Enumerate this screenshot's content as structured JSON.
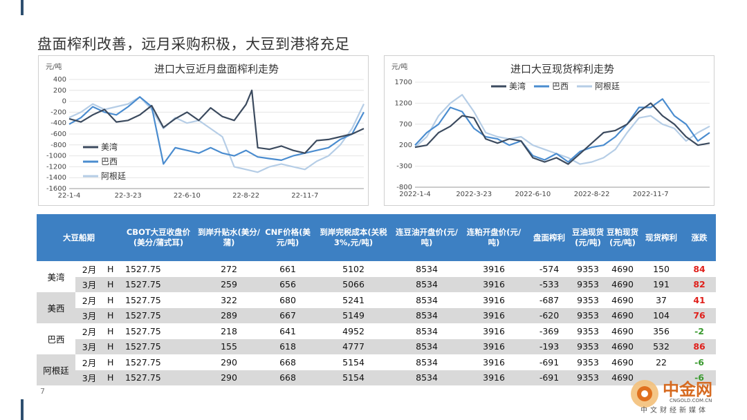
{
  "slide": {
    "title": "盘面榨利改善，远月采购积极，大豆到港将充足",
    "page_number": "7"
  },
  "colors": {
    "accent": "#2e4f6f",
    "header_bg": "#3d80c3",
    "row_shade": "#d9d9d9",
    "up": "#e0201b",
    "down": "#3a9a2f",
    "series_us": "#3b4a5e",
    "series_brazil": "#4a8ccf",
    "series_argentina": "#b5cde6"
  },
  "chart_data": [
    {
      "type": "line",
      "title": "进口大豆近月盘面榨利走势",
      "ylabel": "元/吨",
      "ylim": [
        -1600,
        400
      ],
      "yticks": [
        400,
        200,
        0,
        -200,
        -400,
        -600,
        -800,
        -1000,
        -1200,
        -1400,
        -1600
      ],
      "xticks": [
        "22-1-4",
        "22-3-23",
        "22-6-10",
        "22-8-22",
        "22-11-7"
      ],
      "x_range_index": [
        0,
        100
      ],
      "xtick_index": [
        0,
        20,
        40,
        60,
        80
      ],
      "legend_position": "bottom-left",
      "grid": true,
      "series": [
        {
          "name": "美湾",
          "x": [
            0,
            4,
            8,
            12,
            16,
            20,
            24,
            28,
            32,
            36,
            40,
            44,
            48,
            52,
            56,
            60,
            62,
            64,
            68,
            72,
            76,
            80,
            84,
            88,
            92,
            96,
            100
          ],
          "y": [
            -320,
            -380,
            -250,
            -150,
            -380,
            -350,
            -250,
            -80,
            -480,
            -320,
            -200,
            -350,
            -120,
            -280,
            -350,
            -60,
            200,
            -850,
            -880,
            -820,
            -900,
            -950,
            -720,
            -700,
            -650,
            -600,
            -500
          ]
        },
        {
          "name": "巴西",
          "x": [
            0,
            4,
            8,
            12,
            16,
            20,
            24,
            28,
            32,
            36,
            40,
            44,
            48,
            52,
            56,
            60,
            64,
            68,
            72,
            76,
            80,
            84,
            88,
            92,
            96,
            100
          ],
          "y": [
            -420,
            -300,
            -100,
            -200,
            -250,
            -100,
            80,
            -100,
            -1150,
            -850,
            -900,
            -950,
            -850,
            -950,
            -1000,
            -900,
            -1020,
            -1050,
            -1080,
            -1000,
            -950,
            -900,
            -850,
            -700,
            -600,
            -200
          ]
        },
        {
          "name": "阿根廷",
          "x": [
            0,
            4,
            8,
            12,
            16,
            20,
            24,
            28,
            32,
            36,
            40,
            44,
            48,
            52,
            56,
            60,
            64,
            68,
            72,
            76,
            80,
            84,
            88,
            92,
            96,
            100
          ],
          "y": [
            -300,
            -200,
            -50,
            -150,
            -100,
            -50,
            80,
            -150,
            -500,
            -300,
            -400,
            -350,
            -500,
            -650,
            -1200,
            -1250,
            -1300,
            -1200,
            -1150,
            -1200,
            -1250,
            -1100,
            -1000,
            -800,
            -500,
            -50
          ]
        }
      ]
    },
    {
      "type": "line",
      "title": "进口大豆现货榨利走势",
      "ylabel": "元/吨",
      "ylim": [
        -800,
        1700
      ],
      "yticks": [
        1700,
        1200,
        700,
        200,
        -300,
        -800
      ],
      "xticks": [
        "2022-1-4",
        "2022-3-23",
        "2022-6-10",
        "2022-8-22",
        "2022-11-7"
      ],
      "x_range_index": [
        0,
        100
      ],
      "xtick_index": [
        0,
        20,
        40,
        60,
        80
      ],
      "legend_position": "top-center",
      "grid": true,
      "series": [
        {
          "name": "美湾",
          "x": [
            0,
            4,
            8,
            12,
            16,
            20,
            24,
            28,
            32,
            36,
            40,
            44,
            48,
            52,
            56,
            60,
            64,
            68,
            72,
            76,
            80,
            84,
            88,
            92,
            96,
            100
          ],
          "y": [
            150,
            200,
            500,
            650,
            900,
            850,
            350,
            250,
            350,
            300,
            -100,
            -200,
            -100,
            -250,
            0,
            250,
            500,
            550,
            700,
            1000,
            1200,
            900,
            700,
            400,
            200,
            250
          ]
        },
        {
          "name": "巴西",
          "x": [
            0,
            4,
            8,
            12,
            16,
            20,
            24,
            28,
            32,
            36,
            40,
            44,
            48,
            52,
            56,
            60,
            64,
            68,
            72,
            76,
            80,
            84,
            88,
            92,
            96,
            100
          ],
          "y": [
            200,
            500,
            700,
            1100,
            1000,
            600,
            400,
            350,
            200,
            300,
            -50,
            -150,
            0,
            -200,
            50,
            150,
            200,
            400,
            700,
            1100,
            1100,
            1300,
            900,
            700,
            300,
            500
          ]
        },
        {
          "name": "阿根廷",
          "x": [
            0,
            4,
            8,
            12,
            16,
            20,
            24,
            28,
            32,
            36,
            40,
            44,
            48,
            52,
            56,
            60,
            64,
            68,
            72,
            76,
            80,
            84,
            88,
            92,
            96,
            100
          ],
          "y": [
            150,
            400,
            900,
            1200,
            1400,
            1000,
            500,
            400,
            350,
            400,
            200,
            100,
            0,
            -100,
            -250,
            -200,
            -100,
            100,
            500,
            850,
            900,
            700,
            600,
            300,
            500,
            650
          ]
        }
      ]
    }
  ],
  "table": {
    "headers": [
      "大豆船期",
      "",
      "",
      "CBOT大豆收盘价(美分/蒲式耳)",
      "到岸升贴水(美分/蒲)",
      "CNF价格(美元/吨)",
      "到岸完税成本(关税3%,元/吨)",
      "连豆油开盘价(元/吨)",
      "连粕开盘价(元/吨)",
      "盘面榨利",
      "豆油现货(元/吨)",
      "豆粕现货(元/吨)",
      "现货榨利",
      "涨跌"
    ],
    "groups": [
      {
        "port": "美湾",
        "rows": [
          {
            "month": "2月",
            "h": "H",
            "cbot": "1527.75",
            "premium": "272",
            "cnf": "661",
            "cost": "5102",
            "oil_open": "8534",
            "meal_open": "3916",
            "board_margin": "-574",
            "oil_spot": "9353",
            "meal_spot": "4690",
            "spot_margin": "150",
            "change": "84",
            "dir": "up"
          },
          {
            "month": "3月",
            "h": "H",
            "cbot": "1527.75",
            "premium": "259",
            "cnf": "656",
            "cost": "5066",
            "oil_open": "8534",
            "meal_open": "3916",
            "board_margin": "-533",
            "oil_spot": "9353",
            "meal_spot": "4690",
            "spot_margin": "191",
            "change": "82",
            "dir": "up"
          }
        ]
      },
      {
        "port": "美西",
        "rows": [
          {
            "month": "2月",
            "h": "H",
            "cbot": "1527.75",
            "premium": "322",
            "cnf": "680",
            "cost": "5241",
            "oil_open": "8534",
            "meal_open": "3916",
            "board_margin": "-687",
            "oil_spot": "9353",
            "meal_spot": "4690",
            "spot_margin": "37",
            "change": "41",
            "dir": "up"
          },
          {
            "month": "3月",
            "h": "H",
            "cbot": "1527.75",
            "premium": "289",
            "cnf": "667",
            "cost": "5149",
            "oil_open": "8534",
            "meal_open": "3916",
            "board_margin": "-620",
            "oil_spot": "9353",
            "meal_spot": "4690",
            "spot_margin": "104",
            "change": "76",
            "dir": "up"
          }
        ]
      },
      {
        "port": "巴西",
        "rows": [
          {
            "month": "2月",
            "h": "H",
            "cbot": "1527.75",
            "premium": "218",
            "cnf": "641",
            "cost": "4952",
            "oil_open": "8534",
            "meal_open": "3916",
            "board_margin": "-369",
            "oil_spot": "9353",
            "meal_spot": "4690",
            "spot_margin": "356",
            "change": "-2",
            "dir": "down"
          },
          {
            "month": "3月",
            "h": "H",
            "cbot": "1527.75",
            "premium": "155",
            "cnf": "618",
            "cost": "4777",
            "oil_open": "8534",
            "meal_open": "3916",
            "board_margin": "-193",
            "oil_spot": "9353",
            "meal_spot": "4690",
            "spot_margin": "532",
            "change": "86",
            "dir": "up"
          }
        ]
      },
      {
        "port": "阿根廷",
        "rows": [
          {
            "month": "2月",
            "h": "H",
            "cbot": "1527.75",
            "premium": "290",
            "cnf": "668",
            "cost": "5154",
            "oil_open": "8534",
            "meal_open": "3916",
            "board_margin": "-691",
            "oil_spot": "9353",
            "meal_spot": "4690",
            "spot_margin": "22",
            "change": "-6",
            "dir": "down"
          },
          {
            "month": "3月",
            "h": "H",
            "cbot": "1527.75",
            "premium": "290",
            "cnf": "668",
            "cost": "5154",
            "oil_open": "8534",
            "meal_open": "3916",
            "board_margin": "-691",
            "oil_spot": "9353",
            "meal_spot": "4690",
            "spot_margin": "",
            "change": "-6",
            "dir": "down"
          }
        ]
      }
    ]
  },
  "watermark": {
    "brand": "中金网",
    "domain": "CNGOLD.COM.CN",
    "tagline": "中文财经新媒体"
  }
}
